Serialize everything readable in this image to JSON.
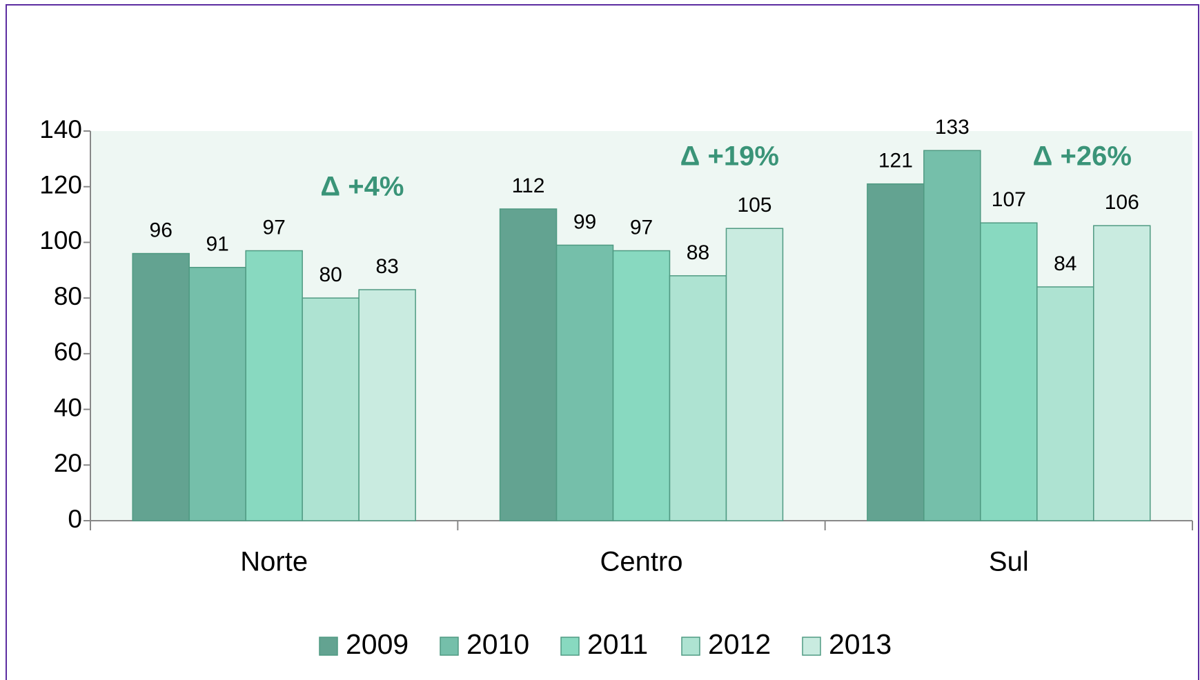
{
  "chart_data": {
    "type": "bar",
    "categories": [
      "Norte",
      "Centro",
      "Sul"
    ],
    "series": [
      {
        "name": "2009",
        "color": "#63a391",
        "values": [
          96,
          112,
          121
        ]
      },
      {
        "name": "2010",
        "color": "#75bfaa",
        "values": [
          91,
          99,
          133
        ]
      },
      {
        "name": "2011",
        "color": "#88d9c0",
        "values": [
          97,
          97,
          107
        ]
      },
      {
        "name": "2012",
        "color": "#aee3d2",
        "values": [
          80,
          88,
          84
        ]
      },
      {
        "name": "2013",
        "color": "#c9ebe0",
        "values": [
          83,
          105,
          106
        ]
      }
    ],
    "annotations": [
      "Δ +4%",
      "Δ +19%",
      "Δ +26%"
    ],
    "ylim": [
      0,
      140
    ],
    "yticks": [
      0,
      20,
      40,
      60,
      80,
      100,
      120,
      140
    ],
    "legend": "bottom"
  }
}
